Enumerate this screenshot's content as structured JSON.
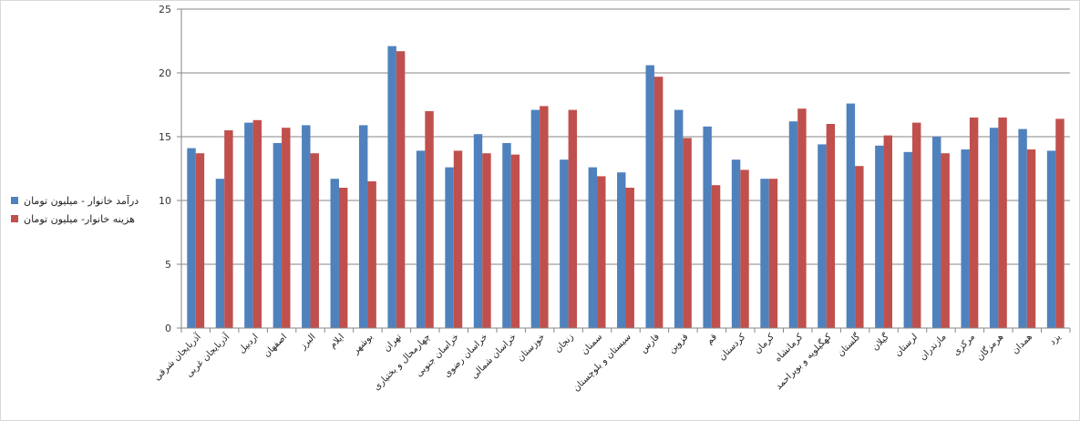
{
  "chart_data": {
    "type": "bar",
    "categories": [
      "آذربایجان شرقی",
      "آذربایجان غربی",
      "اردبیل",
      "اصفهان",
      "البرز",
      "ایلام",
      "بوشهر",
      "تهران",
      "چهارمحال و بختیاری",
      "خراسان جنوبی",
      "خراسان رضوی",
      "خراسان شمالی",
      "خوزستان",
      "زنجان",
      "سمنان",
      "سیستان و بلوچستان",
      "فارس",
      "قزوین",
      "قم",
      "کردستان",
      "کرمان",
      "کرمانشاه",
      "کهگیلویه و بویراحمد",
      "گلستان",
      "گیلان",
      "لرستان",
      "مازندران",
      "مرکزی",
      "هرمزگان",
      "همدان",
      "یزد"
    ],
    "series": [
      {
        "name": "درآمد خانوار - میلیون تومان",
        "color": "#4f81bd",
        "values": [
          14.1,
          11.7,
          16.1,
          14.5,
          15.9,
          11.7,
          15.9,
          22.1,
          13.9,
          12.6,
          15.2,
          14.5,
          17.1,
          13.2,
          12.6,
          12.2,
          20.6,
          17.1,
          15.8,
          13.2,
          11.7,
          16.2,
          14.4,
          17.6,
          14.3,
          13.8,
          15.0,
          14.0,
          15.7,
          15.6,
          13.9
        ]
      },
      {
        "name": "هزینه خانوار- میلیون تومان",
        "color": "#c0504d",
        "values": [
          13.7,
          15.5,
          16.3,
          15.7,
          13.7,
          11.0,
          11.5,
          21.7,
          17.0,
          13.9,
          13.7,
          13.6,
          17.4,
          17.1,
          11.9,
          11.0,
          19.7,
          14.9,
          11.2,
          12.4,
          11.7,
          17.2,
          16.0,
          12.7,
          15.1,
          16.1,
          13.7,
          16.5,
          16.5,
          14.0,
          16.4
        ]
      }
    ],
    "ylim": [
      0,
      25
    ],
    "yticks": [
      0,
      5,
      10,
      15,
      20,
      25
    ],
    "grid": true,
    "legend_position": "left"
  }
}
